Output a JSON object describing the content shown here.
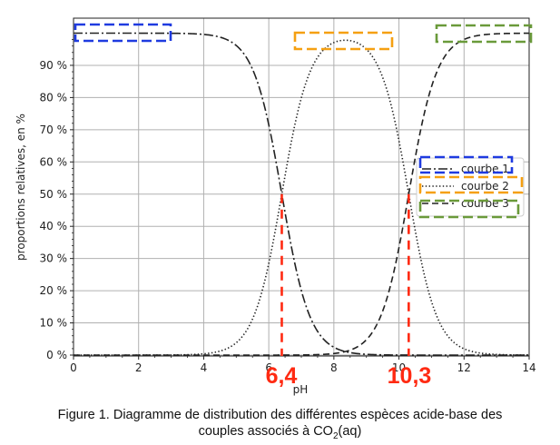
{
  "chart_data": {
    "type": "line",
    "title": "",
    "xlabel": "pH",
    "ylabel": "proportions relatives, en %",
    "xlim": [
      0,
      14
    ],
    "ylim": [
      0,
      100
    ],
    "x_ticks": [
      "0",
      "2",
      "4",
      "6",
      "8",
      "10",
      "12",
      "14"
    ],
    "y_ticks": [
      "0 %",
      "10 %",
      "20 %",
      "30 %",
      "40 %",
      "50 %",
      "60 %",
      "70 %",
      "80 %",
      "90 %"
    ],
    "grid": true,
    "legend_position": "right",
    "pKa": [
      6.4,
      10.3
    ],
    "series": [
      {
        "name": "courbe 1",
        "line_style": "dashdot",
        "color": "#222222",
        "x": [
          0,
          2,
          4,
          4.5,
          5,
          5.5,
          6,
          6.4,
          7,
          7.5,
          8,
          8.5,
          9,
          10,
          11,
          12,
          14
        ],
        "y": [
          100,
          99.9,
          99.6,
          99.2,
          97.5,
          88.8,
          71.5,
          50.0,
          20.1,
          7.3,
          2.4,
          0.8,
          0.2,
          0,
          0,
          0,
          0
        ]
      },
      {
        "name": "courbe 2",
        "line_style": "dotted",
        "color": "#222222",
        "x": [
          0,
          3,
          4,
          5,
          5.5,
          6,
          6.4,
          7,
          7.5,
          8,
          8.3,
          8.5,
          9,
          9.5,
          10,
          10.3,
          11,
          12,
          14
        ],
        "y": [
          0,
          0.1,
          0.4,
          3.8,
          11.2,
          28.5,
          50.0,
          79.9,
          92.6,
          96.8,
          97.5,
          97.2,
          94.9,
          87.7,
          66.6,
          50.0,
          16.6,
          2.0,
          0
        ]
      },
      {
        "name": "courbe 3",
        "line_style": "dashed",
        "color": "#222222",
        "x": [
          0,
          4,
          6,
          7,
          8,
          8.5,
          9,
          9.5,
          10,
          10.3,
          10.5,
          11,
          11.5,
          12,
          13,
          14
        ],
        "y": [
          0,
          0,
          0,
          0,
          0.8,
          1.9,
          4.8,
          12.3,
          33.3,
          50.0,
          61.3,
          83.4,
          94.1,
          98.0,
          99.8,
          100
        ]
      }
    ],
    "annotations": [
      "6,4",
      "10,3"
    ]
  },
  "caption": {
    "line1": "Figure 1. Diagramme de distribution des différentes espèces acide-base des",
    "line2_prefix": "couples associés à CO",
    "line2_sub": "2",
    "line2_suffix": "(aq)"
  },
  "colors": {
    "curve": "#222222",
    "grid": "#b0b0b0",
    "annotation_red": "#ff2a12",
    "box_blue": "#1f3be0",
    "box_orange": "#f5a012",
    "box_green": "#6a9a3a"
  }
}
